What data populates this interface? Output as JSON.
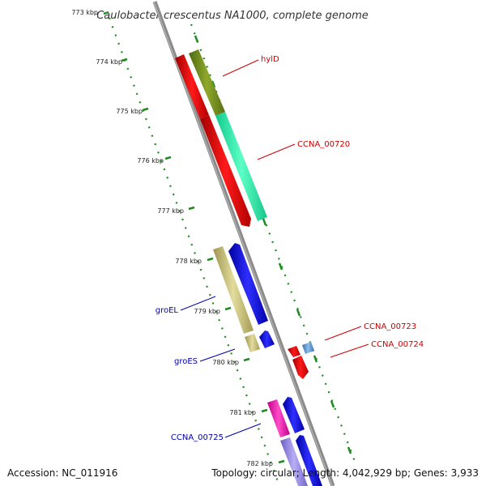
{
  "title": "Caulobacter crescentus NA1000, complete genome",
  "kbp_labels": [
    "773 kbp",
    "774 kbp",
    "775 kbp",
    "776 kbp",
    "777 kbp",
    "778 kbp",
    "779 kbp",
    "780 kbp",
    "781 kbp",
    "782 kbp"
  ],
  "genes": [
    {
      "name": "hylD",
      "color": "#cc0000"
    },
    {
      "name": "CCNA_00720",
      "color": "#cc0000"
    },
    {
      "name": "CCNA_00723",
      "color": "#cc0000"
    },
    {
      "name": "CCNA_00724",
      "color": "#cc0000"
    },
    {
      "name": "groEL",
      "color": "#0000aa"
    },
    {
      "name": "groES",
      "color": "#0000aa"
    },
    {
      "name": "CCNA_00725",
      "color": "#0000aa"
    }
  ],
  "footer": {
    "accession": "Accession: NC_011916",
    "topology": "Topology: circular; Length: 4,042,929 bp; Genes: 3,933"
  }
}
